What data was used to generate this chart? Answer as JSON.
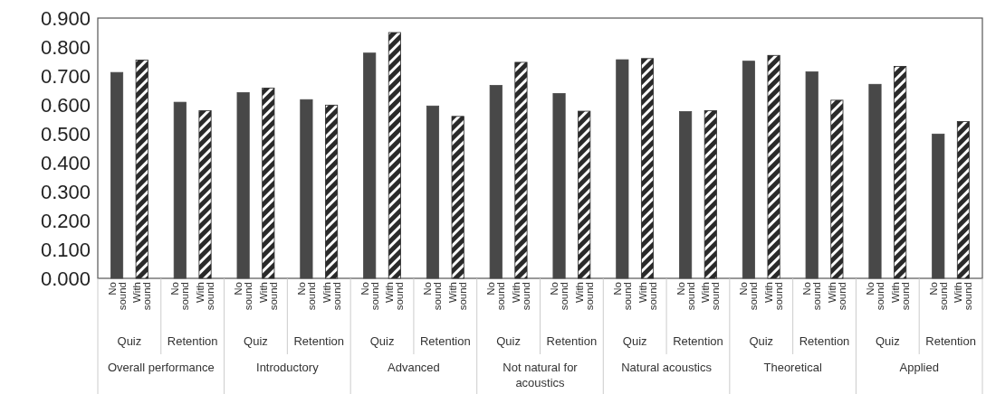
{
  "chart_data": {
    "type": "bar",
    "categories": [
      "Quiz",
      "Retention",
      "Quiz",
      "Retention",
      "Quiz",
      "Retention",
      "Quiz",
      "Retention",
      "Quiz",
      "Retention",
      "Quiz",
      "Retention",
      "Quiz",
      "Retention"
    ],
    "series": [
      {
        "name": "No sound",
        "color": "#484848",
        "values": [
          0.712,
          0.609,
          0.642,
          0.618,
          0.779,
          0.596,
          0.667,
          0.639,
          0.756,
          0.577,
          0.751,
          0.714,
          0.671,
          0.499
        ]
      },
      {
        "name": "With sound",
        "color": "#2a2a2a",
        "values": [
          0.755,
          0.58,
          0.658,
          0.599,
          0.85,
          0.56,
          0.747,
          0.578,
          0.76,
          0.58,
          0.771,
          0.616,
          0.733,
          0.542
        ]
      }
    ],
    "annotations": [
      "Overall performance",
      "Introductory",
      "Advanced",
      "Not natural for acoustics",
      "Natural acoustics",
      "Theoretical",
      "Applied"
    ],
    "ylim": [
      0,
      0.9
    ],
    "yticks": [
      {
        "value": 0,
        "label": "0.000"
      },
      {
        "value": 0.1,
        "label": "0.100"
      },
      {
        "value": 0.2,
        "label": "0.200"
      },
      {
        "value": 0.3,
        "label": "0.300"
      },
      {
        "value": 0.4,
        "label": "0.400"
      },
      {
        "value": 0.5,
        "label": "0.500"
      },
      {
        "value": 0.6,
        "label": "0.600"
      },
      {
        "value": 0.7,
        "label": "0.700"
      },
      {
        "value": 0.8,
        "label": "0.800"
      },
      {
        "value": 0.9,
        "label": "0.900"
      }
    ],
    "grid": false,
    "legend": false
  }
}
